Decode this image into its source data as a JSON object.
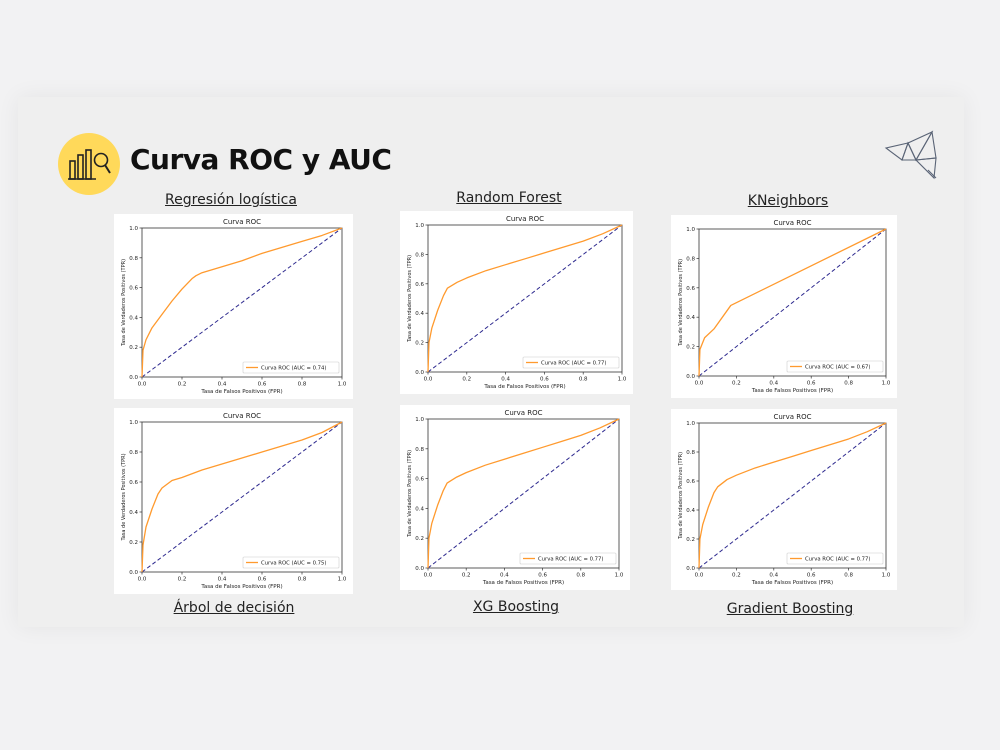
{
  "page": {
    "title": "Curva ROC y AUC",
    "icon": "chart-magnifier-icon",
    "logo": "origami-bird-icon",
    "accent_color": "#ffd95a",
    "roc_color": "#ff9a2e",
    "diag_color": "#2e2a8f"
  },
  "chart_data": [
    {
      "type": "line",
      "model": "Regresión logística",
      "title": "Curva ROC",
      "xlabel": "Tasa de Falsos Positivos (FPR)",
      "ylabel": "Tasa de Verdaderos Positivos (TPR)",
      "xlim": [
        0,
        1
      ],
      "ylim": [
        0,
        1
      ],
      "xticks": [
        "0.0",
        "0.2",
        "0.4",
        "0.6",
        "0.8",
        "1.0"
      ],
      "yticks": [
        "0.0",
        "0.2",
        "0.4",
        "0.6",
        "0.8",
        "1.0"
      ],
      "legend": "Curva ROC (AUC = 0.74)",
      "legend_position": "lower-right",
      "series": [
        {
          "name": "Curva ROC",
          "x": [
            0,
            0.005,
            0.02,
            0.05,
            0.1,
            0.15,
            0.2,
            0.25,
            0.27,
            0.3,
            0.4,
            0.5,
            0.6,
            0.7,
            0.8,
            0.9,
            1.0
          ],
          "y": [
            0,
            0.18,
            0.25,
            0.33,
            0.42,
            0.51,
            0.59,
            0.66,
            0.68,
            0.7,
            0.74,
            0.78,
            0.83,
            0.87,
            0.91,
            0.95,
            1.0
          ]
        },
        {
          "name": "diagonal",
          "x": [
            0,
            1
          ],
          "y": [
            0,
            1
          ]
        }
      ]
    },
    {
      "type": "line",
      "model": "Random Forest",
      "title": "Curva ROC",
      "xlabel": "Tasa de Falsos Positivos (FPR)",
      "ylabel": "Tasa de Verdaderos Positivos (TPR)",
      "xlim": [
        0,
        1
      ],
      "ylim": [
        0,
        1
      ],
      "xticks": [
        "0.0",
        "0.2",
        "0.4",
        "0.6",
        "0.8",
        "1.0"
      ],
      "yticks": [
        "0.0",
        "0.2",
        "0.4",
        "0.6",
        "0.8",
        "1.0"
      ],
      "legend": "Curva ROC (AUC = 0.77)",
      "legend_position": "lower-right",
      "series": [
        {
          "name": "Curva ROC",
          "x": [
            0,
            0.005,
            0.02,
            0.05,
            0.08,
            0.1,
            0.15,
            0.2,
            0.3,
            0.4,
            0.5,
            0.6,
            0.7,
            0.8,
            0.9,
            1.0
          ],
          "y": [
            0,
            0.2,
            0.3,
            0.42,
            0.52,
            0.57,
            0.61,
            0.64,
            0.69,
            0.73,
            0.77,
            0.81,
            0.85,
            0.89,
            0.94,
            1.0
          ]
        },
        {
          "name": "diagonal",
          "x": [
            0,
            1
          ],
          "y": [
            0,
            1
          ]
        }
      ]
    },
    {
      "type": "line",
      "model": "KNeighbors",
      "title": "Curva ROC",
      "xlabel": "Tasa de Falsos Positivos (FPR)",
      "ylabel": "Tasa de Verdaderos Positivos (TPR)",
      "xlim": [
        0,
        1
      ],
      "ylim": [
        0,
        1
      ],
      "xticks": [
        "0.0",
        "0.2",
        "0.4",
        "0.6",
        "0.8",
        "1.0"
      ],
      "yticks": [
        "0.0",
        "0.2",
        "0.4",
        "0.6",
        "0.8",
        "1.0"
      ],
      "legend": "Curva ROC (AUC = 0.67)",
      "legend_position": "lower-right",
      "series": [
        {
          "name": "Curva ROC",
          "x": [
            0,
            0.005,
            0.03,
            0.08,
            0.17,
            1.0
          ],
          "y": [
            0,
            0.18,
            0.26,
            0.32,
            0.48,
            1.0
          ]
        },
        {
          "name": "diagonal",
          "x": [
            0,
            1
          ],
          "y": [
            0,
            1
          ]
        }
      ]
    },
    {
      "type": "line",
      "model": "Árbol de decisión",
      "title": "Curva ROC",
      "xlabel": "Tasa de Falsos Positivos (FPR)",
      "ylabel": "Tasa de Verdaderos Positivos (TPR)",
      "xlim": [
        0,
        1
      ],
      "ylim": [
        0,
        1
      ],
      "xticks": [
        "0.0",
        "0.2",
        "0.4",
        "0.6",
        "0.8",
        "1.0"
      ],
      "yticks": [
        "0.0",
        "0.2",
        "0.4",
        "0.6",
        "0.8",
        "1.0"
      ],
      "legend": "Curva ROC (AUC = 0.75)",
      "legend_position": "lower-right",
      "series": [
        {
          "name": "Curva ROC",
          "x": [
            0,
            0.005,
            0.02,
            0.05,
            0.08,
            0.1,
            0.15,
            0.2,
            0.3,
            0.4,
            0.5,
            0.6,
            0.7,
            0.8,
            0.9,
            1.0
          ],
          "y": [
            0,
            0.18,
            0.3,
            0.42,
            0.52,
            0.56,
            0.61,
            0.63,
            0.68,
            0.72,
            0.76,
            0.8,
            0.84,
            0.88,
            0.93,
            1.0
          ]
        },
        {
          "name": "diagonal",
          "x": [
            0,
            1
          ],
          "y": [
            0,
            1
          ]
        }
      ]
    },
    {
      "type": "line",
      "model": "XG Boosting",
      "title": "Curva ROC",
      "xlabel": "Tasa de Falsos Positivos (FPR)",
      "ylabel": "Tasa de Verdaderos Positivos (TPR)",
      "xlim": [
        0,
        1
      ],
      "ylim": [
        0,
        1
      ],
      "xticks": [
        "0.0",
        "0.2",
        "0.4",
        "0.6",
        "0.8",
        "1.0"
      ],
      "yticks": [
        "0.0",
        "0.2",
        "0.4",
        "0.6",
        "0.8",
        "1.0"
      ],
      "legend": "Curva ROC (AUC = 0.77)",
      "legend_position": "lower-right",
      "series": [
        {
          "name": "Curva ROC",
          "x": [
            0,
            0.005,
            0.02,
            0.05,
            0.08,
            0.1,
            0.15,
            0.2,
            0.3,
            0.4,
            0.5,
            0.6,
            0.7,
            0.8,
            0.9,
            1.0
          ],
          "y": [
            0,
            0.2,
            0.3,
            0.42,
            0.52,
            0.57,
            0.61,
            0.64,
            0.69,
            0.73,
            0.77,
            0.81,
            0.85,
            0.89,
            0.94,
            1.0
          ]
        },
        {
          "name": "diagonal",
          "x": [
            0,
            1
          ],
          "y": [
            0,
            1
          ]
        }
      ]
    },
    {
      "type": "line",
      "model": "Gradient Boosting",
      "title": "Curva ROC",
      "xlabel": "Tasa de Falsos Positivos (FPR)",
      "ylabel": "Tasa de Verdaderos Positivos (TPR)",
      "xlim": [
        0,
        1
      ],
      "ylim": [
        0,
        1
      ],
      "xticks": [
        "0.0",
        "0.2",
        "0.4",
        "0.6",
        "0.8",
        "1.0"
      ],
      "yticks": [
        "0.0",
        "0.2",
        "0.4",
        "0.6",
        "0.8",
        "1.0"
      ],
      "legend": "Curva ROC (AUC = 0.77)",
      "legend_position": "lower-right",
      "series": [
        {
          "name": "Curva ROC",
          "x": [
            0,
            0.005,
            0.02,
            0.05,
            0.08,
            0.1,
            0.15,
            0.2,
            0.3,
            0.4,
            0.5,
            0.6,
            0.7,
            0.8,
            0.9,
            1.0
          ],
          "y": [
            0,
            0.2,
            0.3,
            0.42,
            0.52,
            0.56,
            0.61,
            0.64,
            0.69,
            0.73,
            0.77,
            0.81,
            0.85,
            0.89,
            0.94,
            1.0
          ]
        },
        {
          "name": "diagonal",
          "x": [
            0,
            1
          ],
          "y": [
            0,
            1
          ]
        }
      ]
    }
  ]
}
